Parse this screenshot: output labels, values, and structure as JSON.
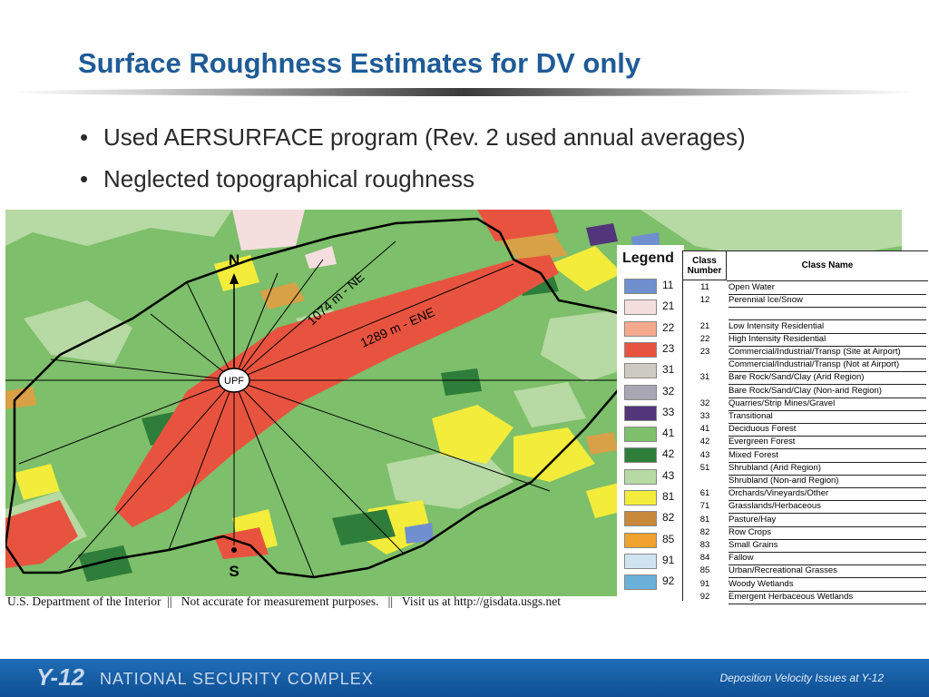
{
  "slide": {
    "title": "Surface Roughness Estimates for DV only",
    "bullets": [
      "Used AERSURFACE program (Rev. 2 used annual averages)",
      "Neglected topographical roughness"
    ]
  },
  "map": {
    "labels": {
      "north": "N",
      "south": "S",
      "center": "UPF",
      "ne_distance": "1074 m - NE",
      "ene_distance": "1289 m - ENE"
    },
    "caption": "U.S. Department of the Interior  ||   Not accurate for measurement purposes.   ||   Visit us at http://gisdata.usgs.net",
    "colors": {
      "deciduous": "#7dbf6a",
      "evergreen": "#2e7d3a",
      "mixed": "#b7d9a3",
      "high_residential": "#e8533f",
      "pasture": "#f3ec3a",
      "row_crops": "#d8a047",
      "boundary": "#000000"
    }
  },
  "legend": {
    "title": "Legend",
    "items": [
      {
        "code": "11",
        "color": "#6f8fcf"
      },
      {
        "code": "21",
        "color": "#f5dede"
      },
      {
        "code": "22",
        "color": "#f4a98f"
      },
      {
        "code": "23",
        "color": "#e8533f"
      },
      {
        "code": "31",
        "color": "#cdcbc1"
      },
      {
        "code": "32",
        "color": "#a9a7b4"
      },
      {
        "code": "33",
        "color": "#52357a"
      },
      {
        "code": "41",
        "color": "#7dbf6a"
      },
      {
        "code": "42",
        "color": "#2e7d3a"
      },
      {
        "code": "43",
        "color": "#b7d9a3"
      },
      {
        "code": "81",
        "color": "#f3ec3a"
      },
      {
        "code": "82",
        "color": "#c9893a"
      },
      {
        "code": "85",
        "color": "#f2a22e"
      },
      {
        "code": "91",
        "color": "#cfe3f0"
      },
      {
        "code": "92",
        "color": "#6ab0d8"
      }
    ]
  },
  "class_table": {
    "header_number": "Class Number",
    "header_name": "Class Name",
    "rows": [
      {
        "num": "11",
        "name": "Open Water"
      },
      {
        "num": "12",
        "name": "Perennial Ice/Snow"
      },
      {
        "num": "",
        "name": ""
      },
      {
        "num": "21",
        "name": "Low Intensity Residential"
      },
      {
        "num": "22",
        "name": "High Intensity Residential"
      },
      {
        "num": "23",
        "name": "Commercial/Industrial/Transp (Site at Airport)"
      },
      {
        "num": "",
        "name": "Commercial/Industrial/Transp (Not at Airport)"
      },
      {
        "num": "31",
        "name": "Bare Rock/Sand/Clay (Arid Region)"
      },
      {
        "num": "",
        "name": "Bare Rock/Sand/Clay (Non-arid Region)"
      },
      {
        "num": "32",
        "name": "Quarries/Strip Mines/Gravel"
      },
      {
        "num": "33",
        "name": "Transitional"
      },
      {
        "num": "41",
        "name": "Deciduous Forest"
      },
      {
        "num": "42",
        "name": "Evergreen Forest"
      },
      {
        "num": "43",
        "name": "Mixed Forest"
      },
      {
        "num": "51",
        "name": "Shrubland (Arid Region)"
      },
      {
        "num": "",
        "name": "Shrubland (Non-arid Region)"
      },
      {
        "num": "61",
        "name": "Orchards/Vineyards/Other"
      },
      {
        "num": "71",
        "name": "Grasslands/Herbaceous"
      },
      {
        "num": "81",
        "name": "Pasture/Hay"
      },
      {
        "num": "82",
        "name": "Row Crops"
      },
      {
        "num": "83",
        "name": "Small Grains"
      },
      {
        "num": "84",
        "name": "Fallow"
      },
      {
        "num": "85",
        "name": "Urban/Recreational Grasses"
      },
      {
        "num": "91",
        "name": "Woody Wetlands"
      },
      {
        "num": "92",
        "name": "Emergent Herbaceous Wetlands"
      }
    ]
  },
  "footer": {
    "logo": "Y-12",
    "org": "NATIONAL SECURITY COMPLEX",
    "right_text": "Deposition Velocity Issues at Y-12"
  }
}
